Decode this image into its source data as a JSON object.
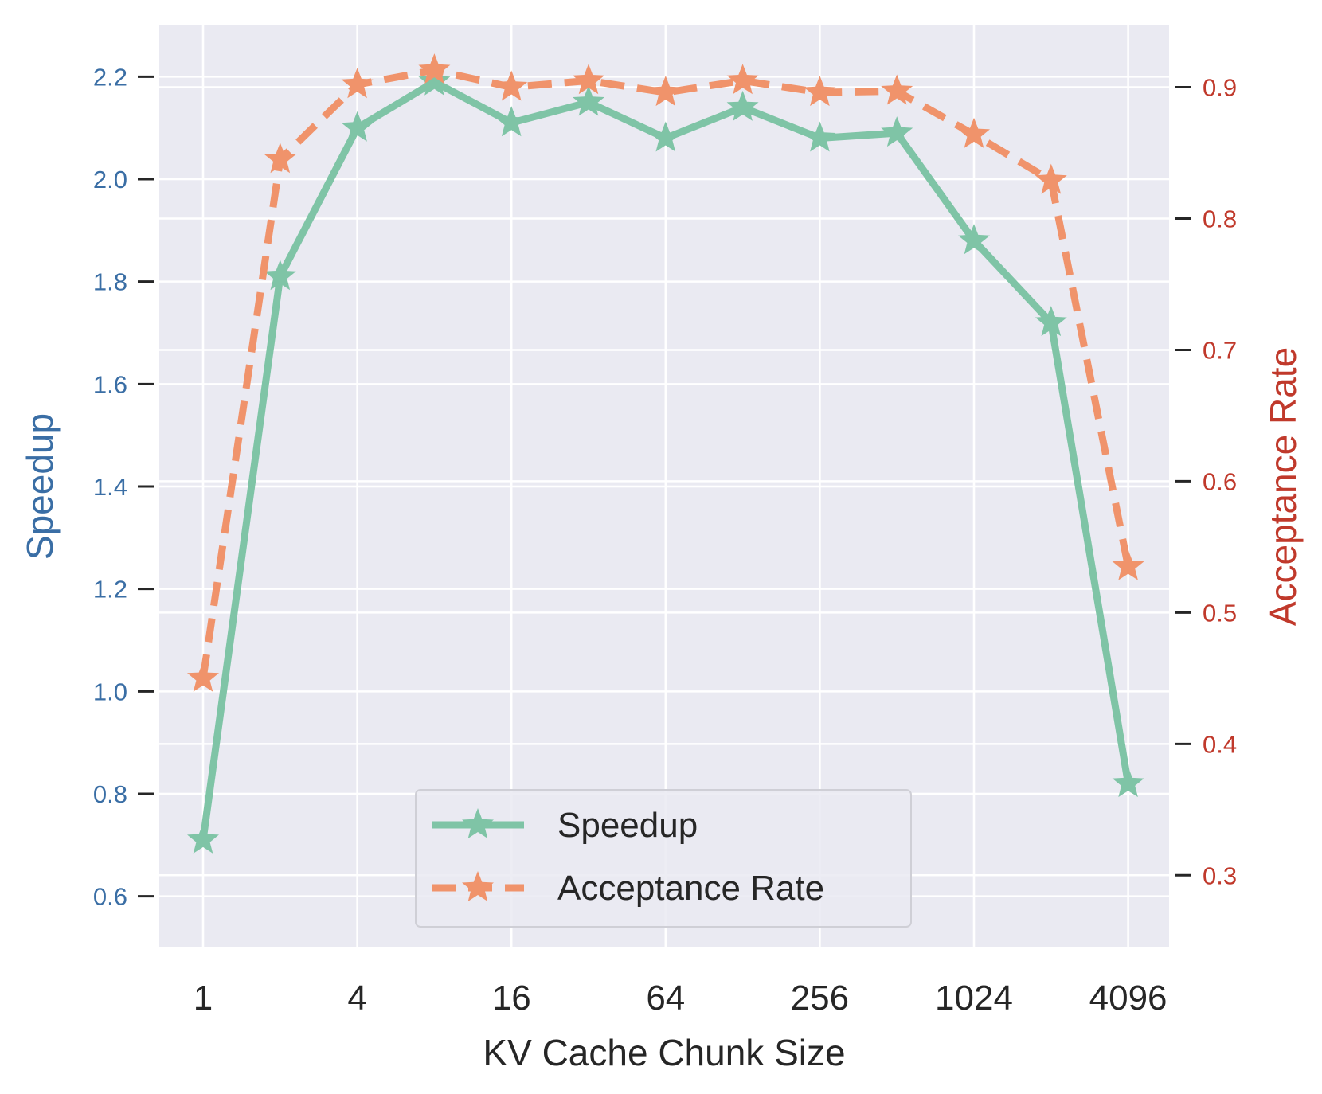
{
  "chart_data": {
    "type": "line",
    "xlabel": "KV Cache Chunk Size",
    "x_scale": "log2",
    "x": [
      1,
      2,
      4,
      8,
      16,
      32,
      64,
      128,
      256,
      512,
      1024,
      2048,
      4096
    ],
    "x_tick_labels": [
      "1",
      "4",
      "16",
      "64",
      "256",
      "1024",
      "4096"
    ],
    "x_tick_values": [
      1,
      4,
      16,
      64,
      256,
      1024,
      4096
    ],
    "y_left": {
      "label": "Speedup",
      "color": "#3a6ea5",
      "ylim": [
        0.5,
        2.3
      ],
      "ticks": [
        "0.6",
        "0.8",
        "1.0",
        "1.2",
        "1.4",
        "1.6",
        "1.8",
        "2.0",
        "2.2"
      ]
    },
    "y_right": {
      "label": "Acceptance Rate",
      "color": "#c0392b",
      "ylim": [
        0.245,
        0.947
      ],
      "ticks": [
        "0.3",
        "0.4",
        "0.5",
        "0.6",
        "0.7",
        "0.8",
        "0.9"
      ]
    },
    "series": [
      {
        "name": "Speedup",
        "axis": "left",
        "color": "#7fc4a6",
        "linestyle": "solid",
        "marker": "star",
        "values": [
          0.71,
          1.81,
          2.1,
          2.19,
          2.11,
          2.15,
          2.08,
          2.14,
          2.08,
          2.09,
          1.88,
          1.72,
          0.82
        ]
      },
      {
        "name": "Acceptance Rate",
        "axis": "right",
        "color": "#f0936b",
        "linestyle": "dashed",
        "marker": "star",
        "values": [
          0.45,
          0.845,
          0.902,
          0.913,
          0.9,
          0.905,
          0.896,
          0.905,
          0.896,
          0.897,
          0.864,
          0.829,
          0.535
        ]
      }
    ],
    "legend_position": "lower-center",
    "grid": true,
    "background": "#eaeaf2"
  }
}
